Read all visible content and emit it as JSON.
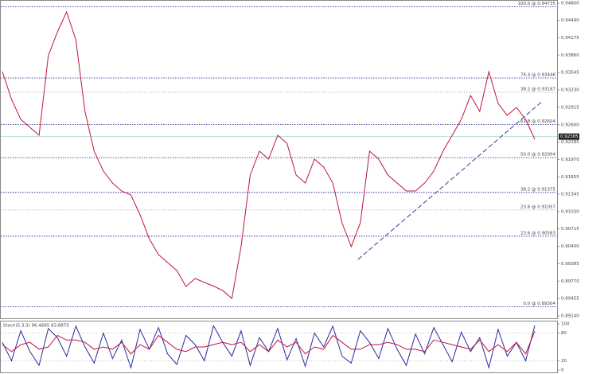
{
  "chart_data": [
    {
      "type": "line",
      "categories": [
        null,
        null,
        null,
        null,
        null,
        null,
        null,
        null,
        null,
        null,
        null,
        null,
        null,
        null,
        null,
        null,
        null,
        null,
        null,
        null,
        null,
        null,
        null,
        null,
        null,
        null,
        null,
        null,
        null,
        null,
        null,
        null,
        null,
        null,
        null,
        null,
        null,
        null,
        null,
        null,
        null,
        null,
        null,
        null,
        null,
        null,
        null,
        null,
        null,
        null,
        null,
        null,
        null,
        null,
        null,
        null,
        null,
        null,
        null
      ],
      "series": [
        {
          "color": "#c0143c",
          "values": [
            0.93562,
            0.93057,
            0.92697,
            0.92553,
            0.92409,
            0.9385,
            0.94282,
            0.94642,
            0.94138,
            0.92841,
            0.92121,
            0.91761,
            0.91545,
            0.914,
            0.91329,
            0.90969,
            0.90537,
            0.9025,
            0.90105,
            0.89961,
            0.89673,
            0.89817,
            0.89745,
            0.8968,
            0.896,
            0.89457,
            0.90393,
            0.91689,
            0.92121,
            0.91977,
            0.92409,
            0.92265,
            0.91689,
            0.91545,
            0.91977,
            0.91833,
            0.91545,
            0.90825,
            0.90393,
            0.90825,
            0.92121,
            0.91977,
            0.91689,
            0.91545,
            0.91401,
            0.91401,
            0.91545,
            0.91761,
            0.92121,
            0.92409,
            0.92697,
            0.93129,
            0.92841,
            0.93562,
            0.92985,
            0.92769,
            0.92913,
            0.92697,
            0.92337
          ]
        }
      ],
      "ylim": [
        0.8914,
        0.948
      ],
      "yticks": [
        {
          "value": 0.948,
          "label": "0.94800"
        },
        {
          "value": 0.9449,
          "label": "0.94490"
        },
        {
          "value": 0.94175,
          "label": "0.94175"
        },
        {
          "value": 0.9386,
          "label": "0.93860"
        },
        {
          "value": 0.93545,
          "label": "0.93545"
        },
        {
          "value": 0.9323,
          "label": "0.93230"
        },
        {
          "value": 0.92915,
          "label": "0.92915"
        },
        {
          "value": 0.926,
          "label": "0.92600"
        },
        {
          "value": 0.92285,
          "label": "0.92285"
        },
        {
          "value": 0.9197,
          "label": "0.91970"
        },
        {
          "value": 0.91655,
          "label": "0.91655"
        },
        {
          "value": 0.91345,
          "label": "0.91345"
        },
        {
          "value": 0.9103,
          "label": "0.91030"
        },
        {
          "value": 0.90715,
          "label": "0.90715"
        },
        {
          "value": 0.904,
          "label": "0.90400"
        },
        {
          "value": 0.90085,
          "label": "0.90085"
        },
        {
          "value": 0.8977,
          "label": "0.89770"
        },
        {
          "value": 0.89455,
          "label": "0.89455"
        },
        {
          "value": 0.8914,
          "label": "0.89140"
        }
      ],
      "current_price": {
        "value": 0.92385,
        "label": "0.92385"
      },
      "fib_levels": [
        {
          "value": 0.94735,
          "label": "100.0 @ 0.94735",
          "color": "#1a1a8c"
        },
        {
          "value": 0.93446,
          "label": "76.4 @ 0.93446",
          "color": "#1a1a8c"
        },
        {
          "value": 0.93187,
          "label": "38.2 @ 0.93187",
          "color": "#aaaaaa"
        },
        {
          "value": 0.92604,
          "label": "61.8 @ 0.92604",
          "color": "#1a1a8c"
        },
        {
          "value": 0.92004,
          "label": "50.0 @ 0.92004",
          "color": "#1a1a8c"
        },
        {
          "value": 0.91375,
          "label": "38.2 @ 0.91375",
          "color": "#1a1a8c"
        },
        {
          "value": 0.91057,
          "label": "23.6 @ 0.91057",
          "color": "#aaaaaa"
        },
        {
          "value": 0.90583,
          "label": "23.6 @ 0.90583",
          "color": "#1a1a8c"
        },
        {
          "value": 0.89304,
          "label": "0.0 @ 0.89304",
          "color": "#1a1a8c"
        }
      ],
      "trendline": {
        "from": [
          38.75,
          0.90163
        ],
        "to": [
          58.75,
          0.93014
        ],
        "color": "#3a3a9a"
      }
    },
    {
      "type": "line",
      "title": "Stoch(5,3,3) 96.4685 83.8875",
      "ylim": [
        0,
        100
      ],
      "yticks": [
        100,
        80,
        20,
        0
      ],
      "levels": [
        80,
        20
      ],
      "series": [
        {
          "color": "#2a2aa0",
          "values": [
            60,
            20,
            85,
            40,
            10,
            90,
            70,
            30,
            95,
            50,
            15,
            80,
            25,
            65,
            5,
            88,
            45,
            92,
            35,
            12,
            75,
            55,
            20,
            96,
            60,
            30,
            85,
            10,
            70,
            40,
            90,
            22,
            68,
            8,
            80,
            50,
            95,
            30,
            15,
            85,
            60,
            25,
            90,
            45,
            10,
            78,
            35,
            92,
            55,
            18,
            82,
            40,
            70,
            5,
            88,
            30,
            60,
            20,
            96.4685
          ]
        },
        {
          "color": "#c0143c",
          "values": [
            55,
            40,
            55,
            60,
            45,
            50,
            75,
            65,
            65,
            60,
            45,
            50,
            45,
            60,
            35,
            55,
            45,
            75,
            60,
            45,
            40,
            50,
            50,
            55,
            60,
            55,
            60,
            40,
            55,
            40,
            65,
            50,
            60,
            35,
            50,
            45,
            75,
            60,
            45,
            45,
            55,
            55,
            60,
            55,
            45,
            45,
            40,
            65,
            60,
            55,
            50,
            45,
            65,
            40,
            55,
            40,
            60,
            35,
            83.8875
          ]
        }
      ]
    }
  ]
}
